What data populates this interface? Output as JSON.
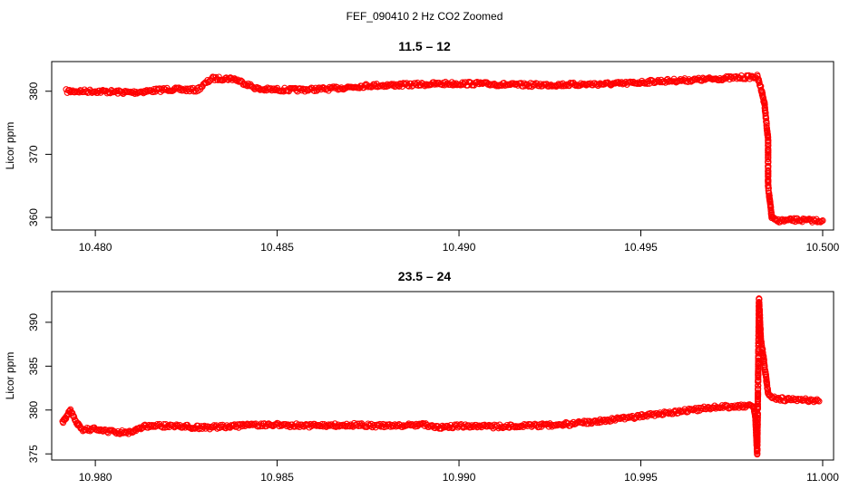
{
  "figure_title": "FEF_090410  2 Hz CO2 Zoomed",
  "colors": {
    "points": "#ff0000",
    "axes": "#000000",
    "background": "#ffffff"
  },
  "chart_data": [
    {
      "type": "scatter",
      "title": "11.5 – 12",
      "xlabel": "",
      "ylabel": "Licor ppm",
      "xlim": [
        10.4788,
        10.5003
      ],
      "ylim": [
        358.0,
        384.7
      ],
      "xticks": [
        10.48,
        10.485,
        10.49,
        10.495,
        10.5
      ],
      "xtick_labels": [
        "10.480",
        "10.485",
        "10.490",
        "10.495",
        "10.500"
      ],
      "yticks": [
        360,
        370,
        380
      ],
      "ytick_labels": [
        "360",
        "370",
        "380"
      ],
      "grid": false,
      "legend": "none",
      "marker": "open-circle",
      "series": [
        {
          "x": [
            10.4792,
            10.48,
            10.481,
            10.482,
            10.4828,
            10.4832,
            10.4838,
            10.4845,
            10.4855,
            10.4865,
            10.4875,
            10.4885,
            10.4896,
            10.4905,
            10.4915,
            10.4925,
            10.4935,
            10.4945,
            10.4955,
            10.4965,
            10.4975,
            10.4982,
            10.4983,
            10.4984,
            10.4985,
            10.4985,
            10.4986,
            10.4987,
            10.4988,
            10.499,
            10.4993,
            10.4996,
            10.5
          ],
          "y": [
            380.0,
            380.0,
            379.8,
            380.3,
            380.2,
            382.0,
            382.0,
            380.3,
            380.2,
            380.4,
            380.9,
            381.0,
            381.2,
            381.2,
            381.0,
            381.0,
            381.1,
            381.2,
            381.6,
            381.8,
            382.1,
            382.3,
            380.6,
            378.0,
            372.2,
            365.0,
            360.0,
            359.5,
            359.5,
            359.5,
            359.6,
            359.5,
            359.5
          ]
        }
      ]
    },
    {
      "type": "scatter",
      "title": "23.5 – 24",
      "xlabel": "",
      "ylabel": "Licor ppm",
      "xlim": [
        10.9788,
        11.0003
      ],
      "ylim": [
        374.3,
        393.5
      ],
      "xticks": [
        10.98,
        10.985,
        10.99,
        10.995,
        11.0
      ],
      "xtick_labels": [
        "10.980",
        "10.985",
        "10.990",
        "10.995",
        "11.000"
      ],
      "yticks": [
        375,
        380,
        385,
        390
      ],
      "ytick_labels": [
        "375",
        "380",
        "385",
        "390"
      ],
      "grid": false,
      "legend": "none",
      "marker": "open-circle",
      "series": [
        {
          "x": [
            10.9791,
            10.9793,
            10.9796,
            10.98,
            10.9805,
            10.981,
            10.9812,
            10.9815,
            10.982,
            10.983,
            10.984,
            10.985,
            10.986,
            10.987,
            10.988,
            10.989,
            10.9896,
            10.99,
            10.991,
            10.992,
            10.993,
            10.994,
            10.995,
            10.996,
            10.997,
            10.9975,
            10.9981,
            10.99815,
            10.9982,
            10.99825,
            10.9983,
            10.99835,
            10.9984,
            10.99845,
            10.9985,
            10.9987,
            10.999,
            10.9995,
            10.9999
          ],
          "y": [
            378.5,
            380.0,
            377.8,
            377.8,
            377.5,
            377.4,
            378.0,
            378.2,
            378.2,
            378.0,
            378.2,
            378.3,
            378.2,
            378.3,
            378.2,
            378.3,
            378.0,
            378.2,
            378.1,
            378.2,
            378.4,
            378.8,
            379.3,
            379.8,
            380.3,
            380.4,
            380.5,
            379.2,
            375.0,
            392.6,
            388.0,
            386.8,
            385.0,
            383.5,
            381.8,
            381.3,
            381.2,
            381.2,
            381.0
          ]
        }
      ]
    }
  ]
}
